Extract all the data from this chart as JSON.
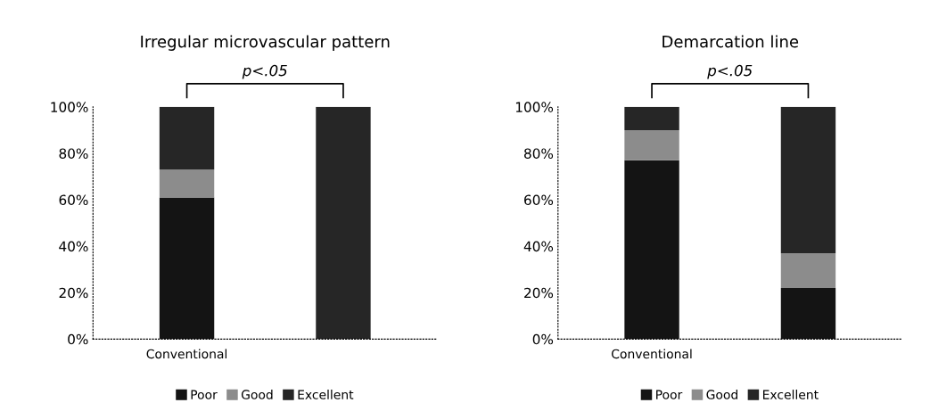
{
  "chart_data": [
    {
      "type": "bar",
      "title": "Irregular microvascular pattern",
      "categories": [
        "Conventional",
        null
      ],
      "stacked": true,
      "legend": "bottom",
      "grid": false,
      "ylim": [
        0,
        100
      ],
      "yticks": [
        {
          "value": 0,
          "label": "0%"
        },
        {
          "value": 20,
          "label": "20%"
        },
        {
          "value": 40,
          "label": "40%"
        },
        {
          "value": 60,
          "label": "60%"
        },
        {
          "value": 80,
          "label": "80%"
        },
        {
          "value": 100,
          "label": "100%"
        }
      ],
      "series": [
        {
          "name": "Poor",
          "color": "#141414",
          "values": [
            61,
            0
          ]
        },
        {
          "name": "Good",
          "color": "#8c8c8c",
          "values": [
            12,
            0
          ]
        },
        {
          "name": "Excellent",
          "color": "#262626",
          "values": [
            27,
            100
          ]
        }
      ],
      "annotations": [
        "p<.05"
      ]
    },
    {
      "type": "bar",
      "title": "Demarcation line",
      "categories": [
        "Conventional",
        null
      ],
      "stacked": true,
      "legend": "bottom",
      "grid": false,
      "ylim": [
        0,
        100
      ],
      "yticks": [
        {
          "value": 0,
          "label": "0%"
        },
        {
          "value": 20,
          "label": "20%"
        },
        {
          "value": 40,
          "label": "40%"
        },
        {
          "value": 60,
          "label": "60%"
        },
        {
          "value": 80,
          "label": "80%"
        },
        {
          "value": 100,
          "label": "100%"
        }
      ],
      "series": [
        {
          "name": "Poor",
          "color": "#141414",
          "values": [
            77,
            22
          ]
        },
        {
          "name": "Good",
          "color": "#8c8c8c",
          "values": [
            13,
            15
          ]
        },
        {
          "name": "Excellent",
          "color": "#262626",
          "values": [
            10,
            63
          ]
        }
      ],
      "annotations": [
        "p<.05"
      ]
    }
  ]
}
